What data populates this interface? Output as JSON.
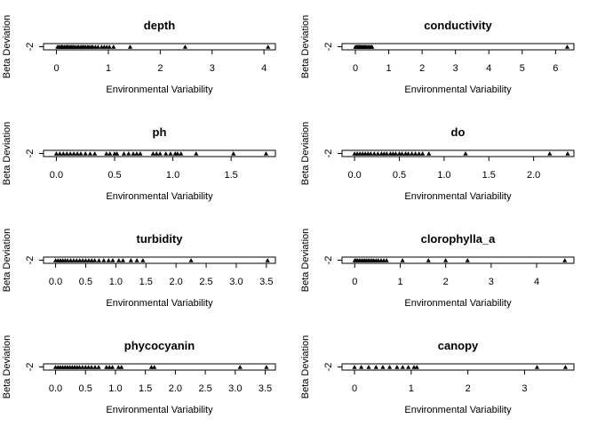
{
  "chart_data": [
    {
      "type": "scatter",
      "title": "depth",
      "xlabel": "Environmental Variability",
      "ylabel": "Beta Deviation",
      "xlim": [
        -0.25,
        4.22
      ],
      "xticks": [
        0,
        1,
        2,
        3,
        4
      ],
      "ytick_labels": [
        "-2"
      ],
      "x": [
        0.02,
        0.05,
        0.08,
        0.1,
        0.12,
        0.15,
        0.18,
        0.2,
        0.22,
        0.25,
        0.28,
        0.3,
        0.33,
        0.36,
        0.4,
        0.43,
        0.47,
        0.5,
        0.53,
        0.56,
        0.6,
        0.63,
        0.67,
        0.7,
        0.75,
        0.8,
        0.87,
        0.92,
        0.97,
        1.02,
        1.1,
        1.42,
        2.48,
        4.08
      ]
    },
    {
      "type": "scatter",
      "title": "conductivity",
      "xlabel": "Environmental Variability",
      "ylabel": "Beta Deviation",
      "xlim": [
        -0.4,
        6.55
      ],
      "xticks": [
        0,
        1,
        2,
        3,
        4,
        5,
        6
      ],
      "ytick_labels": [
        "-2"
      ],
      "x": [
        0.0,
        0.03,
        0.06,
        0.09,
        0.12,
        0.15,
        0.18,
        0.21,
        0.24,
        0.27,
        0.3,
        0.34,
        0.38,
        0.42,
        0.46,
        0.5,
        6.35
      ]
    },
    {
      "type": "scatter",
      "title": "ph",
      "xlabel": "Environmental Variability",
      "ylabel": "Beta Deviation",
      "xlim": [
        -0.11,
        1.88
      ],
      "xticks": [
        0.0,
        0.5,
        1.0,
        1.5
      ],
      "ytick_labels": [
        "-2"
      ],
      "x": [
        0.0,
        0.03,
        0.06,
        0.09,
        0.12,
        0.15,
        0.18,
        0.21,
        0.25,
        0.29,
        0.33,
        0.43,
        0.46,
        0.5,
        0.52,
        0.58,
        0.62,
        0.66,
        0.69,
        0.72,
        0.83,
        0.86,
        0.89,
        0.94,
        0.98,
        1.02,
        1.04,
        1.07,
        1.2,
        1.52,
        1.8
      ]
    },
    {
      "type": "scatter",
      "title": "do",
      "xlabel": "Environmental Variability",
      "ylabel": "Beta Deviation",
      "xlim": [
        -0.14,
        2.45
      ],
      "xticks": [
        0.0,
        0.5,
        1.0,
        1.5,
        2.0
      ],
      "ytick_labels": [
        "-2"
      ],
      "x": [
        0.0,
        0.03,
        0.06,
        0.09,
        0.12,
        0.15,
        0.18,
        0.22,
        0.26,
        0.3,
        0.33,
        0.36,
        0.4,
        0.43,
        0.46,
        0.5,
        0.53,
        0.57,
        0.6,
        0.64,
        0.68,
        0.72,
        0.76,
        0.83,
        1.24,
        2.18,
        2.38
      ]
    },
    {
      "type": "scatter",
      "title": "turbidity",
      "xlabel": "Environmental Variability",
      "ylabel": "Beta Deviation",
      "xlim": [
        -0.2,
        3.65
      ],
      "xticks": [
        0.0,
        0.5,
        1.0,
        1.5,
        2.0,
        2.5,
        3.0,
        3.5
      ],
      "ytick_labels": [
        "-2"
      ],
      "x": [
        0.0,
        0.04,
        0.08,
        0.12,
        0.16,
        0.2,
        0.25,
        0.3,
        0.35,
        0.4,
        0.45,
        0.5,
        0.55,
        0.6,
        0.65,
        0.72,
        0.8,
        0.88,
        0.95,
        1.05,
        1.12,
        1.25,
        1.35,
        1.45,
        2.25,
        3.52
      ]
    },
    {
      "type": "scatter",
      "title": "clorophylla_a",
      "xlabel": "Environmental Variability",
      "ylabel": "Beta Deviation",
      "xlim": [
        -0.28,
        4.82
      ],
      "xticks": [
        0,
        1,
        2,
        3,
        4
      ],
      "ytick_labels": [
        "-2"
      ],
      "x": [
        0.0,
        0.03,
        0.06,
        0.1,
        0.14,
        0.18,
        0.22,
        0.26,
        0.3,
        0.34,
        0.38,
        0.42,
        0.47,
        0.52,
        0.58,
        0.64,
        0.7,
        1.05,
        1.62,
        2.0,
        2.48,
        4.62
      ]
    },
    {
      "type": "scatter",
      "title": "phycocyanin",
      "xlabel": "Environmental Variability",
      "ylabel": "Beta Deviation",
      "xlim": [
        -0.2,
        3.67
      ],
      "xticks": [
        0.0,
        0.5,
        1.0,
        1.5,
        2.0,
        2.5,
        3.0,
        3.5
      ],
      "ytick_labels": [
        "-2"
      ],
      "x": [
        0.0,
        0.04,
        0.08,
        0.12,
        0.16,
        0.2,
        0.24,
        0.28,
        0.32,
        0.36,
        0.4,
        0.45,
        0.5,
        0.55,
        0.6,
        0.66,
        0.72,
        0.85,
        0.9,
        0.95,
        1.05,
        1.1,
        1.6,
        1.65,
        3.08,
        3.52
      ]
    },
    {
      "type": "scatter",
      "title": "canopy",
      "xlabel": "Environmental Variability",
      "ylabel": "Beta Deviation",
      "xlim": [
        -0.22,
        3.87
      ],
      "xticks": [
        0,
        1,
        2,
        3
      ],
      "ytick_labels": [
        "-2"
      ],
      "x": [
        0.0,
        0.12,
        0.25,
        0.38,
        0.5,
        0.62,
        0.75,
        0.85,
        0.95,
        1.05,
        1.1,
        3.22,
        3.72
      ]
    }
  ]
}
